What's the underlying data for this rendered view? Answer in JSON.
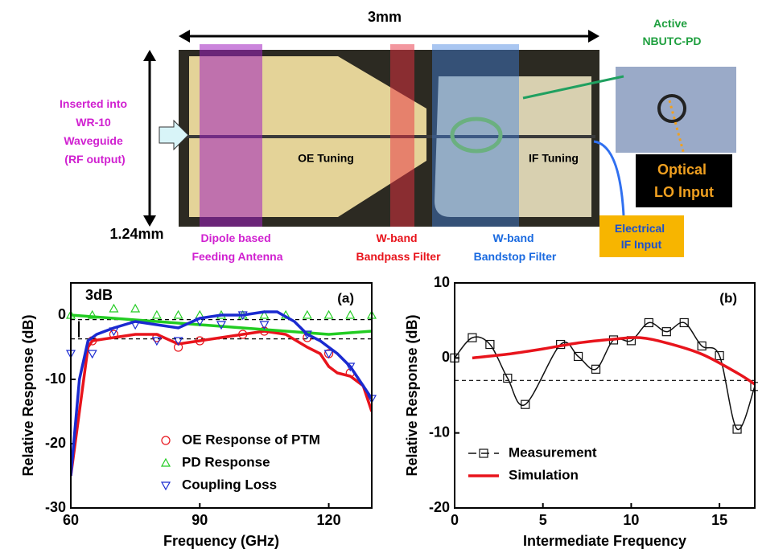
{
  "diagram": {
    "width_label": "3mm",
    "height_label": "1.24mm",
    "waveguide": [
      "Inserted into",
      "WR-10",
      "Waveguide",
      "(RF output)"
    ],
    "oe_tuning": "OE Tuning",
    "if_tuning": "IF Tuning",
    "antenna": [
      "Dipole based",
      "Feeding Antenna"
    ],
    "bandpass": [
      "W-band",
      "Bandpass Filter"
    ],
    "bandstop": [
      "W-band",
      "Bandstop Filter"
    ],
    "pd": [
      "Active",
      "NBUTC-PD"
    ],
    "optical": [
      "Optical",
      "LO Input"
    ],
    "electrical": [
      "Electrical",
      "IF Input"
    ]
  },
  "chart_data": [
    {
      "type": "line",
      "panel": "(a)",
      "annotation": "3dB",
      "xlabel": "Frequency (GHz)",
      "ylabel": "Relative Response (dB)",
      "xlim": [
        60,
        130
      ],
      "ylim": [
        -30,
        5
      ],
      "xticks": [
        60,
        90,
        120
      ],
      "yticks": [
        0,
        -10,
        -20,
        -30
      ],
      "hlines": [
        -0.7,
        -3.7
      ],
      "smooth": false,
      "legend": "lower center",
      "legend_line": false,
      "series": [
        {
          "name": "OE Response of PTM",
          "color": "#e8141c",
          "marker": "circle",
          "x": [
            60,
            62,
            64,
            65,
            70,
            75,
            80,
            85,
            90,
            95,
            100,
            105,
            110,
            115,
            118,
            120,
            122,
            125,
            128,
            130
          ],
          "values": [
            -25,
            -15,
            -5,
            -4,
            -3.5,
            -3,
            -3,
            -4.5,
            -4,
            -3.5,
            -3,
            -2.5,
            -3,
            -5,
            -6,
            -8,
            -9,
            -9.5,
            -11,
            -15
          ],
          "markers": {
            "x": [
              65,
              70,
              80,
              85,
              90,
              100,
              105,
              115,
              120,
              125
            ],
            "values": [
              -4,
              -3,
              -3.5,
              -5,
              -4,
              -3,
              -2.5,
              -3.5,
              -6,
              -9
            ]
          }
        },
        {
          "name": "PD Response",
          "color": "#22cc22",
          "marker": "triangle-up",
          "x": [
            60,
            70,
            80,
            90,
            100,
            110,
            120,
            130
          ],
          "values": [
            0,
            -0.5,
            -1,
            -1.5,
            -2,
            -2.5,
            -3,
            -2.5
          ],
          "markers": {
            "x": [
              60,
              65,
              70,
              75,
              80,
              85,
              90,
              95,
              100,
              105,
              110,
              115,
              120,
              125,
              130
            ],
            "values": [
              0,
              0,
              1,
              1,
              0,
              0,
              0,
              0,
              0,
              0,
              0,
              0,
              0,
              0,
              0
            ]
          }
        },
        {
          "name": "Coupling Loss",
          "color": "#1a2ad0",
          "marker": "triangle-down",
          "x": [
            60,
            62,
            64,
            66,
            70,
            75,
            80,
            85,
            90,
            95,
            100,
            105,
            108,
            112,
            115,
            118,
            120,
            122,
            125,
            128,
            130
          ],
          "values": [
            -25,
            -10,
            -4,
            -3,
            -2,
            -1,
            -1.5,
            -2,
            -0.5,
            0,
            0,
            0.5,
            0.5,
            -1,
            -3,
            -4,
            -5,
            -6,
            -8,
            -11,
            -13
          ],
          "markers": {
            "x": [
              60,
              65,
              70,
              75,
              80,
              85,
              90,
              95,
              100,
              105,
              115,
              120,
              125,
              130
            ],
            "values": [
              -6,
              -6,
              -2.5,
              -1.5,
              -4,
              -4,
              -1,
              -1.5,
              0,
              -1.5,
              -3,
              -6,
              -8,
              -13
            ]
          }
        }
      ]
    },
    {
      "type": "line",
      "panel": "(b)",
      "xlabel": "Intermediate Frequency",
      "ylabel": "Relative Response (dB)",
      "xlim": [
        0,
        17
      ],
      "ylim": [
        -20,
        10
      ],
      "xticks": [
        0,
        5,
        10,
        15
      ],
      "yticks": [
        10,
        0,
        -10,
        -20
      ],
      "hlines": [
        -3
      ],
      "smooth": true,
      "legend": "lower left",
      "legend_line": true,
      "series": [
        {
          "name": "Measurement",
          "color": "#111111",
          "marker": "square",
          "x": [
            0,
            1,
            2,
            3,
            4,
            6,
            7,
            8,
            9,
            10,
            11,
            12,
            13,
            14,
            15,
            16,
            17
          ],
          "values": [
            0,
            2.7,
            1.8,
            -2.7,
            -6.2,
            1.8,
            0.2,
            -1.5,
            2.4,
            2.3,
            4.7,
            3.5,
            4.7,
            1.6,
            0.3,
            -9.5,
            -3.8
          ]
        },
        {
          "name": "Simulation",
          "color": "#e8141c",
          "x": [
            1,
            3,
            5,
            7,
            9,
            10.5,
            12,
            14,
            16,
            17
          ],
          "values": [
            0,
            0.5,
            1.2,
            2,
            2.5,
            2.7,
            2,
            0.5,
            -2,
            -3.5
          ]
        }
      ]
    }
  ]
}
